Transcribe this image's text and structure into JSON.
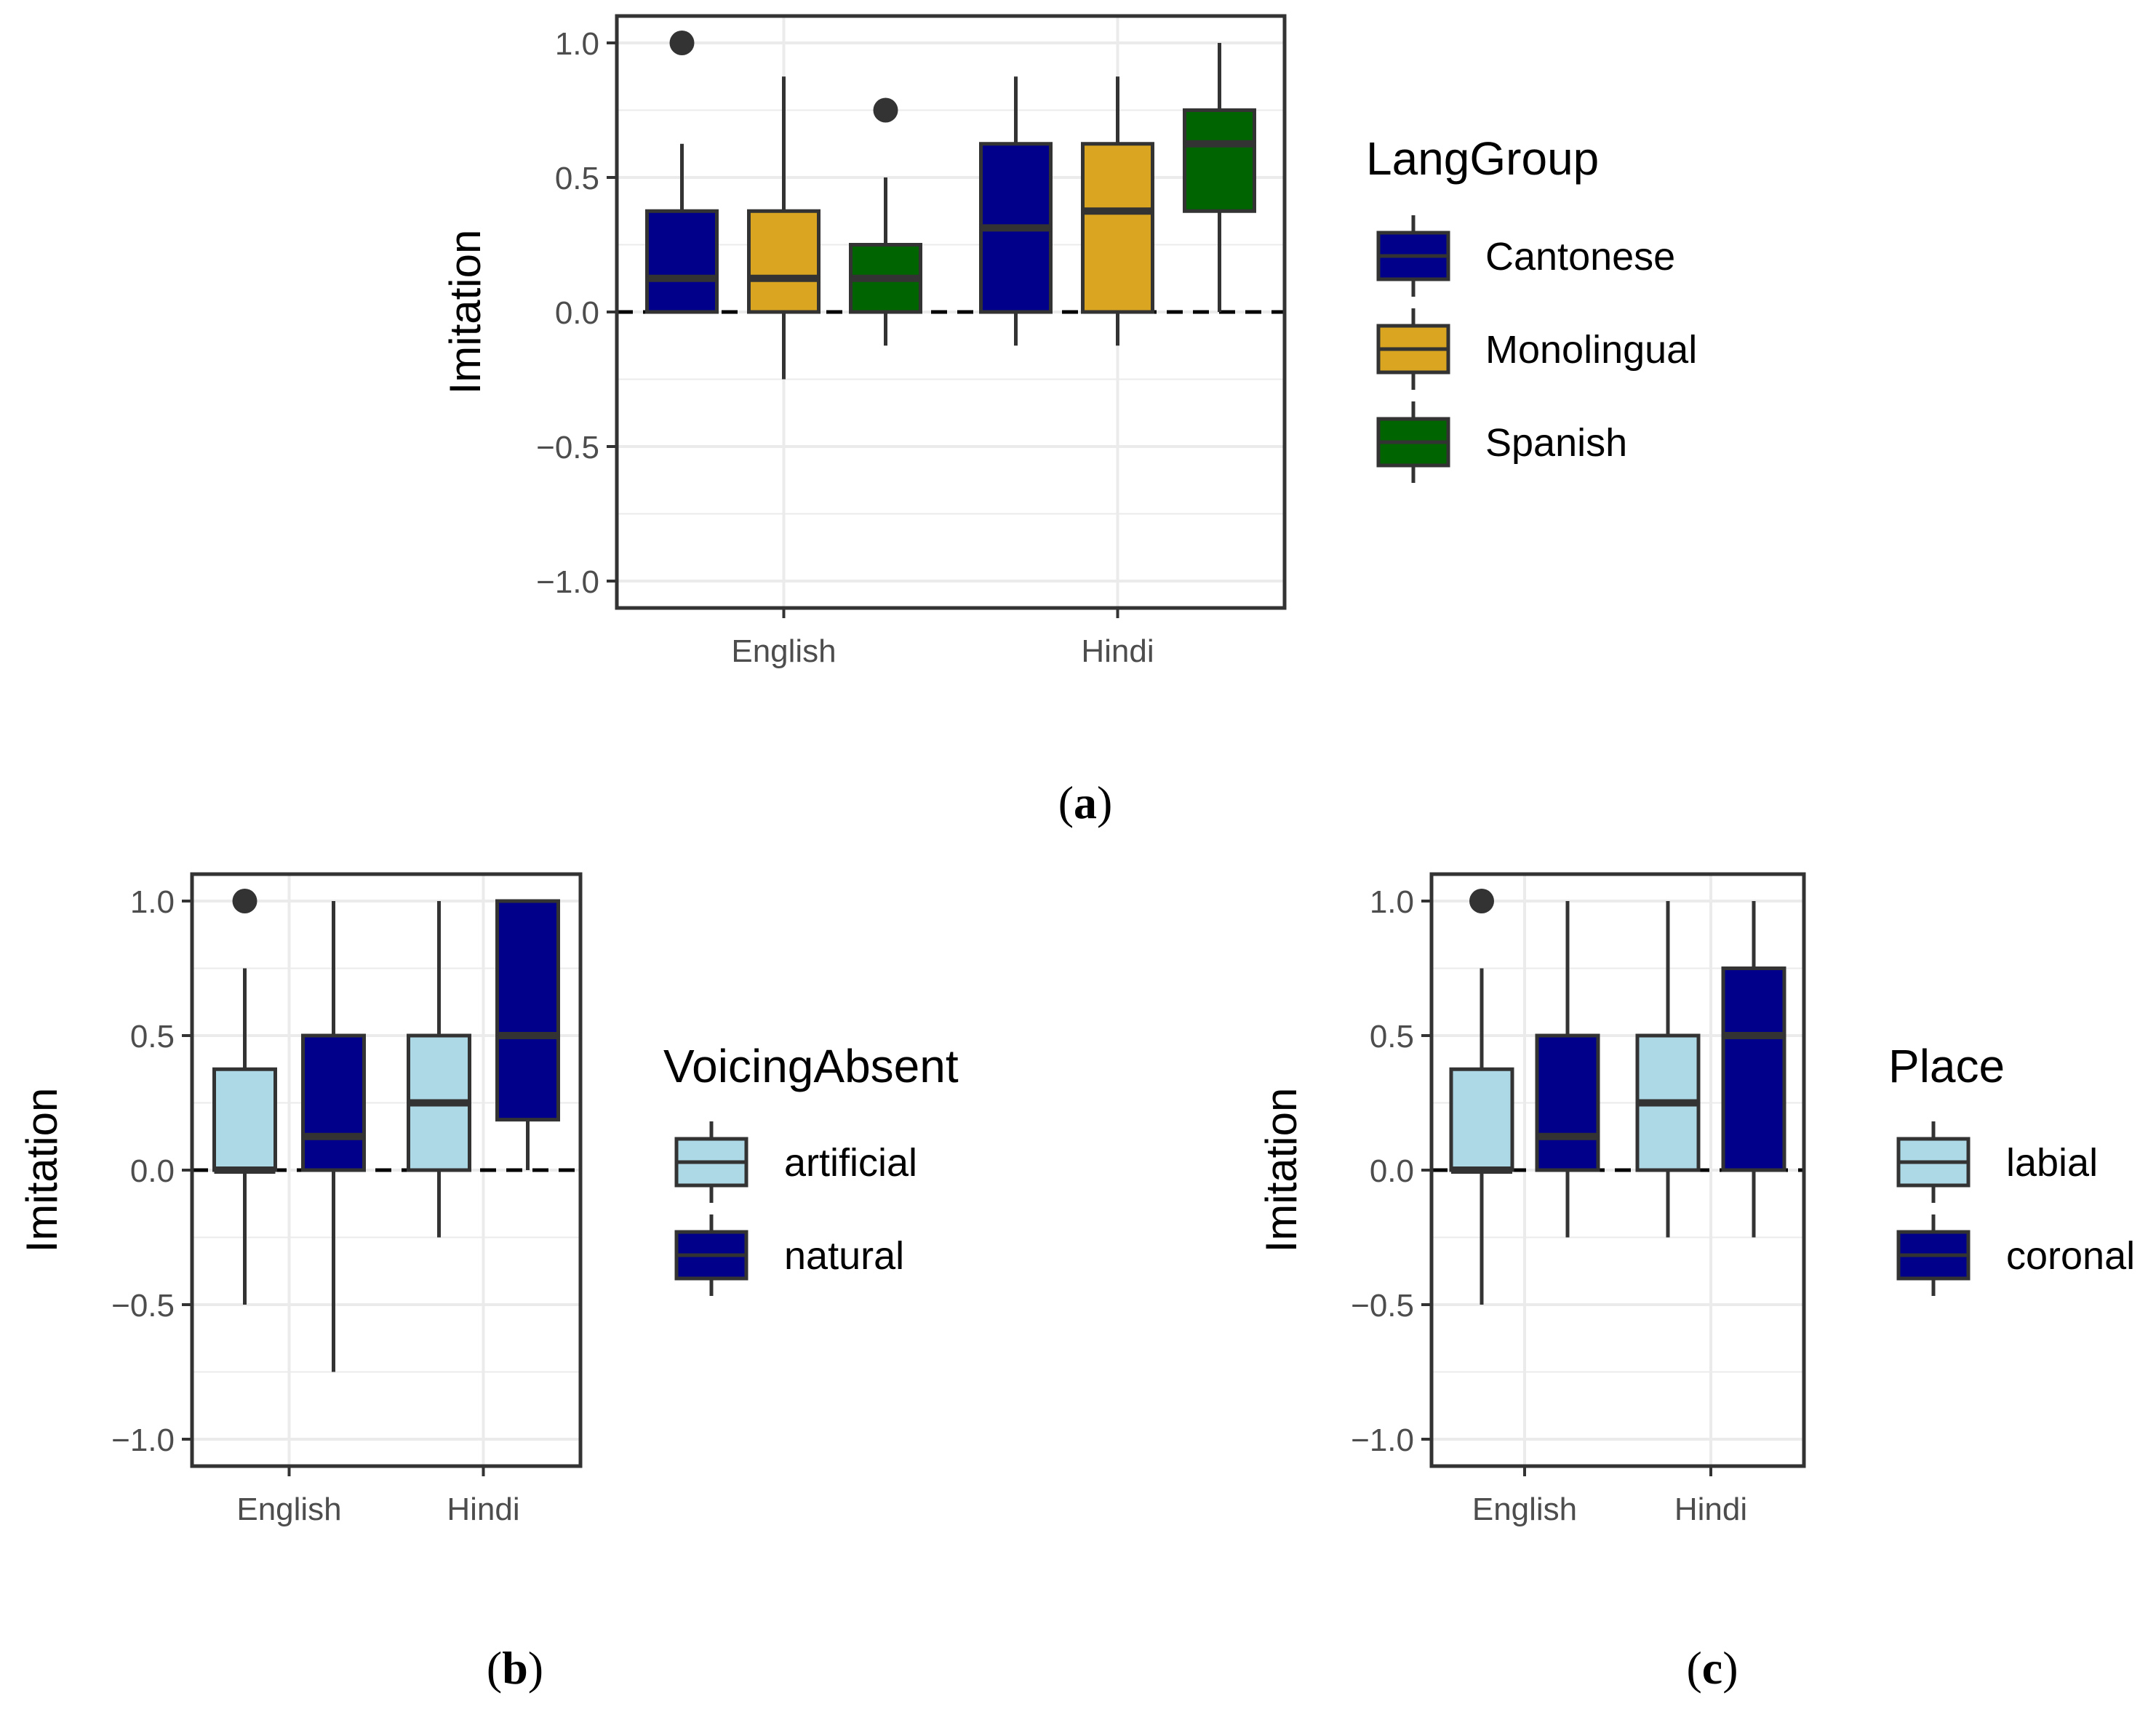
{
  "chart_data": [
    {
      "panel": "a",
      "type": "boxplot",
      "caption": "a",
      "ylabel": "Imitation",
      "xlabel": "",
      "ylim": [
        -1.1,
        1.1
      ],
      "yticks": [
        1.0,
        0.5,
        0.0,
        -0.5,
        -1.0
      ],
      "ytick_labels": [
        "1.0",
        "0.5",
        "0.0",
        "−0.5",
        "−1.0"
      ],
      "reference_line": 0.0,
      "categories": [
        "English",
        "Hindi"
      ],
      "legend": {
        "title": "LangGroup",
        "entries": [
          {
            "label": "Cantonese",
            "color": "#00008b"
          },
          {
            "label": "Monolingual",
            "color": "#daa520"
          },
          {
            "label": "Spanish",
            "color": "#006400"
          }
        ]
      },
      "series": [
        {
          "name": "Cantonese",
          "color": "#00008b",
          "boxes": [
            {
              "category": "English",
              "whisker_low": 0.0,
              "q1": 0.0,
              "median": 0.125,
              "q3": 0.375,
              "whisker_high": 0.625,
              "outliers": [
                1.0
              ]
            },
            {
              "category": "Hindi",
              "whisker_low": -0.125,
              "q1": 0.0,
              "median": 0.3125,
              "q3": 0.625,
              "whisker_high": 0.875,
              "outliers": []
            }
          ]
        },
        {
          "name": "Monolingual",
          "color": "#daa520",
          "boxes": [
            {
              "category": "English",
              "whisker_low": -0.25,
              "q1": 0.0,
              "median": 0.125,
              "q3": 0.375,
              "whisker_high": 0.875,
              "outliers": []
            },
            {
              "category": "Hindi",
              "whisker_low": -0.125,
              "q1": 0.0,
              "median": 0.375,
              "q3": 0.625,
              "whisker_high": 0.875,
              "outliers": []
            }
          ]
        },
        {
          "name": "Spanish",
          "color": "#006400",
          "boxes": [
            {
              "category": "English",
              "whisker_low": -0.125,
              "q1": 0.0,
              "median": 0.125,
              "q3": 0.25,
              "whisker_high": 0.5,
              "outliers": [
                0.75
              ]
            },
            {
              "category": "Hindi",
              "whisker_low": 0.0,
              "q1": 0.375,
              "median": 0.625,
              "q3": 0.75,
              "whisker_high": 1.0,
              "outliers": []
            }
          ]
        }
      ]
    },
    {
      "panel": "b",
      "type": "boxplot",
      "caption": "b",
      "ylabel": "Imitation",
      "xlabel": "",
      "ylim": [
        -1.1,
        1.1
      ],
      "yticks": [
        1.0,
        0.5,
        0.0,
        -0.5,
        -1.0
      ],
      "ytick_labels": [
        "1.0",
        "0.5",
        "0.0",
        "−0.5",
        "−1.0"
      ],
      "reference_line": 0.0,
      "categories": [
        "English",
        "Hindi"
      ],
      "legend": {
        "title": "VoicingAbsent",
        "entries": [
          {
            "label": "artificial",
            "color": "#add8e6"
          },
          {
            "label": "natural",
            "color": "#00008b"
          }
        ]
      },
      "series": [
        {
          "name": "artificial",
          "color": "#add8e6",
          "boxes": [
            {
              "category": "English",
              "whisker_low": -0.5,
              "q1": 0.0,
              "median": 0.0,
              "q3": 0.375,
              "whisker_high": 0.75,
              "outliers": [
                1.0
              ]
            },
            {
              "category": "Hindi",
              "whisker_low": -0.25,
              "q1": 0.0,
              "median": 0.25,
              "q3": 0.5,
              "whisker_high": 1.0,
              "outliers": []
            }
          ]
        },
        {
          "name": "natural",
          "color": "#00008b",
          "boxes": [
            {
              "category": "English",
              "whisker_low": -0.75,
              "q1": 0.0,
              "median": 0.125,
              "q3": 0.5,
              "whisker_high": 1.0,
              "outliers": []
            },
            {
              "category": "Hindi",
              "whisker_low": 0.0,
              "q1": 0.1875,
              "median": 0.5,
              "q3": 1.0,
              "whisker_high": 1.0,
              "outliers": []
            }
          ]
        }
      ]
    },
    {
      "panel": "c",
      "type": "boxplot",
      "caption": "c",
      "ylabel": "Imitation",
      "xlabel": "",
      "ylim": [
        -1.1,
        1.1
      ],
      "yticks": [
        1.0,
        0.5,
        0.0,
        -0.5,
        -1.0
      ],
      "ytick_labels": [
        "1.0",
        "0.5",
        "0.0",
        "−0.5",
        "−1.0"
      ],
      "reference_line": 0.0,
      "categories": [
        "English",
        "Hindi"
      ],
      "legend": {
        "title": "Place",
        "entries": [
          {
            "label": "labial",
            "color": "#add8e6"
          },
          {
            "label": "coronal",
            "color": "#00008b"
          }
        ]
      },
      "series": [
        {
          "name": "labial",
          "color": "#add8e6",
          "boxes": [
            {
              "category": "English",
              "whisker_low": -0.5,
              "q1": 0.0,
              "median": 0.0,
              "q3": 0.375,
              "whisker_high": 0.75,
              "outliers": [
                1.0
              ]
            },
            {
              "category": "Hindi",
              "whisker_low": -0.25,
              "q1": 0.0,
              "median": 0.25,
              "q3": 0.5,
              "whisker_high": 1.0,
              "outliers": []
            }
          ]
        },
        {
          "name": "coronal",
          "color": "#00008b",
          "boxes": [
            {
              "category": "English",
              "whisker_low": -0.25,
              "q1": 0.0,
              "median": 0.125,
              "q3": 0.5,
              "whisker_high": 1.0,
              "outliers": []
            },
            {
              "category": "Hindi",
              "whisker_low": -0.25,
              "q1": 0.0,
              "median": 0.5,
              "q3": 0.75,
              "whisker_high": 1.0,
              "outliers": []
            }
          ]
        }
      ]
    }
  ]
}
